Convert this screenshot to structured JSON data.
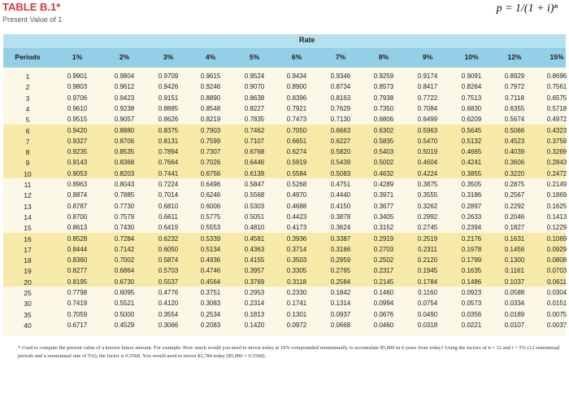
{
  "title": "TABLE B.1*",
  "subtitle": "Present Value of 1",
  "formula": "p = 1/(1 + i)ⁿ",
  "rate_label": "Rate",
  "periods_label": "Periods",
  "rates": [
    "1%",
    "2%",
    "3%",
    "4%",
    "5%",
    "6%",
    "7%",
    "8%",
    "9%",
    "10%",
    "12%",
    "15%"
  ],
  "rows": [
    {
      "n": "1",
      "v": [
        "0.9901",
        "0.9804",
        "0.9709",
        "0.9615",
        "0.9524",
        "0.9434",
        "0.9346",
        "0.9259",
        "0.9174",
        "0.9091",
        "0.8929",
        "0.8696"
      ]
    },
    {
      "n": "2",
      "v": [
        "0.9803",
        "0.9612",
        "0.9426",
        "0.9246",
        "0.9070",
        "0.8900",
        "0.8734",
        "0.8573",
        "0.8417",
        "0.8264",
        "0.7972",
        "0.7561"
      ]
    },
    {
      "n": "3",
      "v": [
        "0.9706",
        "0.9423",
        "0.9151",
        "0.8890",
        "0.8638",
        "0.8396",
        "0.8163",
        "0.7938",
        "0.7722",
        "0.7513",
        "0.7118",
        "0.6575"
      ]
    },
    {
      "n": "4",
      "v": [
        "0.9610",
        "0.9238",
        "0.8885",
        "0.8548",
        "0.8227",
        "0.7921",
        "0.7629",
        "0.7350",
        "0.7084",
        "0.6830",
        "0.6355",
        "0.5718"
      ]
    },
    {
      "n": "5",
      "v": [
        "0.9515",
        "0.9057",
        "0.8626",
        "0.8219",
        "0.7835",
        "0.7473",
        "0.7130",
        "0.6806",
        "0.6499",
        "0.6209",
        "0.5674",
        "0.4972"
      ]
    },
    {
      "n": "6",
      "v": [
        "0.9420",
        "0.8880",
        "0.8375",
        "0.7903",
        "0.7462",
        "0.7050",
        "0.6663",
        "0.6302",
        "0.5963",
        "0.5645",
        "0.5066",
        "0.4323"
      ]
    },
    {
      "n": "7",
      "v": [
        "0.9327",
        "0.8706",
        "0.8131",
        "0.7599",
        "0.7107",
        "0.6651",
        "0.6227",
        "0.5835",
        "0.5470",
        "0.5132",
        "0.4523",
        "0.3759"
      ]
    },
    {
      "n": "8",
      "v": [
        "0.9235",
        "0.8535",
        "0.7894",
        "0.7307",
        "0.6768",
        "0.6274",
        "0.5820",
        "0.5403",
        "0.5019",
        "0.4665",
        "0.4039",
        "0.3269"
      ]
    },
    {
      "n": "9",
      "v": [
        "0.9143",
        "0.8368",
        "0.7664",
        "0.7026",
        "0.6446",
        "0.5919",
        "0.5439",
        "0.5002",
        "0.4604",
        "0.4241",
        "0.3606",
        "0.2843"
      ]
    },
    {
      "n": "10",
      "v": [
        "0.9053",
        "0.8203",
        "0.7441",
        "0.6756",
        "0.6139",
        "0.5584",
        "0.5083",
        "0.4632",
        "0.4224",
        "0.3855",
        "0.3220",
        "0.2472"
      ]
    },
    {
      "n": "11",
      "v": [
        "0.8963",
        "0.8043",
        "0.7224",
        "0.6496",
        "0.5847",
        "0.5268",
        "0.4751",
        "0.4289",
        "0.3875",
        "0.3505",
        "0.2875",
        "0.2149"
      ]
    },
    {
      "n": "12",
      "v": [
        "0.8874",
        "0.7885",
        "0.7014",
        "0.6246",
        "0.5568",
        "0.4970",
        "0.4440",
        "0.3971",
        "0.3555",
        "0.3186",
        "0.2567",
        "0.1869"
      ]
    },
    {
      "n": "13",
      "v": [
        "0.8787",
        "0.7730",
        "0.6810",
        "0.6006",
        "0.5303",
        "0.4688",
        "0.4150",
        "0.3677",
        "0.3262",
        "0.2897",
        "0.2292",
        "0.1625"
      ]
    },
    {
      "n": "14",
      "v": [
        "0.8700",
        "0.7579",
        "0.6611",
        "0.5775",
        "0.5051",
        "0.4423",
        "0.3878",
        "0.3405",
        "0.2992",
        "0.2633",
        "0.2046",
        "0.1413"
      ]
    },
    {
      "n": "15",
      "v": [
        "0.8613",
        "0.7430",
        "0.6419",
        "0.5553",
        "0.4810",
        "0.4173",
        "0.3624",
        "0.3152",
        "0.2745",
        "0.2394",
        "0.1827",
        "0.1229"
      ]
    },
    {
      "n": "16",
      "v": [
        "0.8528",
        "0.7284",
        "0.6232",
        "0.5339",
        "0.4581",
        "0.3936",
        "0.3387",
        "0.2919",
        "0.2519",
        "0.2176",
        "0.1631",
        "0.1069"
      ]
    },
    {
      "n": "17",
      "v": [
        "0.8444",
        "0.7142",
        "0.6050",
        "0.5134",
        "0.4363",
        "0.3714",
        "0.3166",
        "0.2703",
        "0.2311",
        "0.1978",
        "0.1456",
        "0.0929"
      ]
    },
    {
      "n": "18",
      "v": [
        "0.8360",
        "0.7002",
        "0.5874",
        "0.4936",
        "0.4155",
        "0.3503",
        "0.2959",
        "0.2502",
        "0.2120",
        "0.1799",
        "0.1300",
        "0.0808"
      ]
    },
    {
      "n": "19",
      "v": [
        "0.8277",
        "0.6864",
        "0.5703",
        "0.4746",
        "0.3957",
        "0.3305",
        "0.2765",
        "0.2317",
        "0.1945",
        "0.1635",
        "0.1161",
        "0.0703"
      ]
    },
    {
      "n": "20",
      "v": [
        "0.8195",
        "0.6730",
        "0.5537",
        "0.4564",
        "0.3769",
        "0.3118",
        "0.2584",
        "0.2145",
        "0.1784",
        "0.1486",
        "0.1037",
        "0.0611"
      ]
    },
    {
      "n": "25",
      "v": [
        "0.7798",
        "0.6095",
        "0.4776",
        "0.3751",
        "0.2953",
        "0.2330",
        "0.1842",
        "0.1460",
        "0.1160",
        "0.0923",
        "0.0588",
        "0.0304"
      ]
    },
    {
      "n": "30",
      "v": [
        "0.7419",
        "0.5521",
        "0.4120",
        "0.3083",
        "0.2314",
        "0.1741",
        "0.1314",
        "0.0994",
        "0.0754",
        "0.0573",
        "0.0334",
        "0.0151"
      ]
    },
    {
      "n": "35",
      "v": [
        "0.7059",
        "0.5000",
        "0.3554",
        "0.2534",
        "0.1813",
        "0.1301",
        "0.0937",
        "0.0676",
        "0.0490",
        "0.0356",
        "0.0189",
        "0.0075"
      ]
    },
    {
      "n": "40",
      "v": [
        "0.6717",
        "0.4529",
        "0.3066",
        "0.2083",
        "0.1420",
        "0.0972",
        "0.0668",
        "0.0460",
        "0.0318",
        "0.0221",
        "0.0107",
        "0.0037"
      ]
    }
  ],
  "footnote": "* Used to compute the present value of a known future amount. For example: How much would you need to invest today at 10% compounded semiannually to accumulate $5,000 in 6 years from today? Using the factors of n = 12 and i = 5% (12 semiannual periods and a semiannual rate of 5%), the factor is 0.5568. You would need to invest $2,784 today ($5,000 × 0.5568).",
  "colors": {
    "title": "#d13a3a",
    "rate_band": "#b7e0ee",
    "header": "#93cfe6",
    "stripe_light": "#fbf8e8",
    "stripe_dark": "#f7e9a8"
  }
}
